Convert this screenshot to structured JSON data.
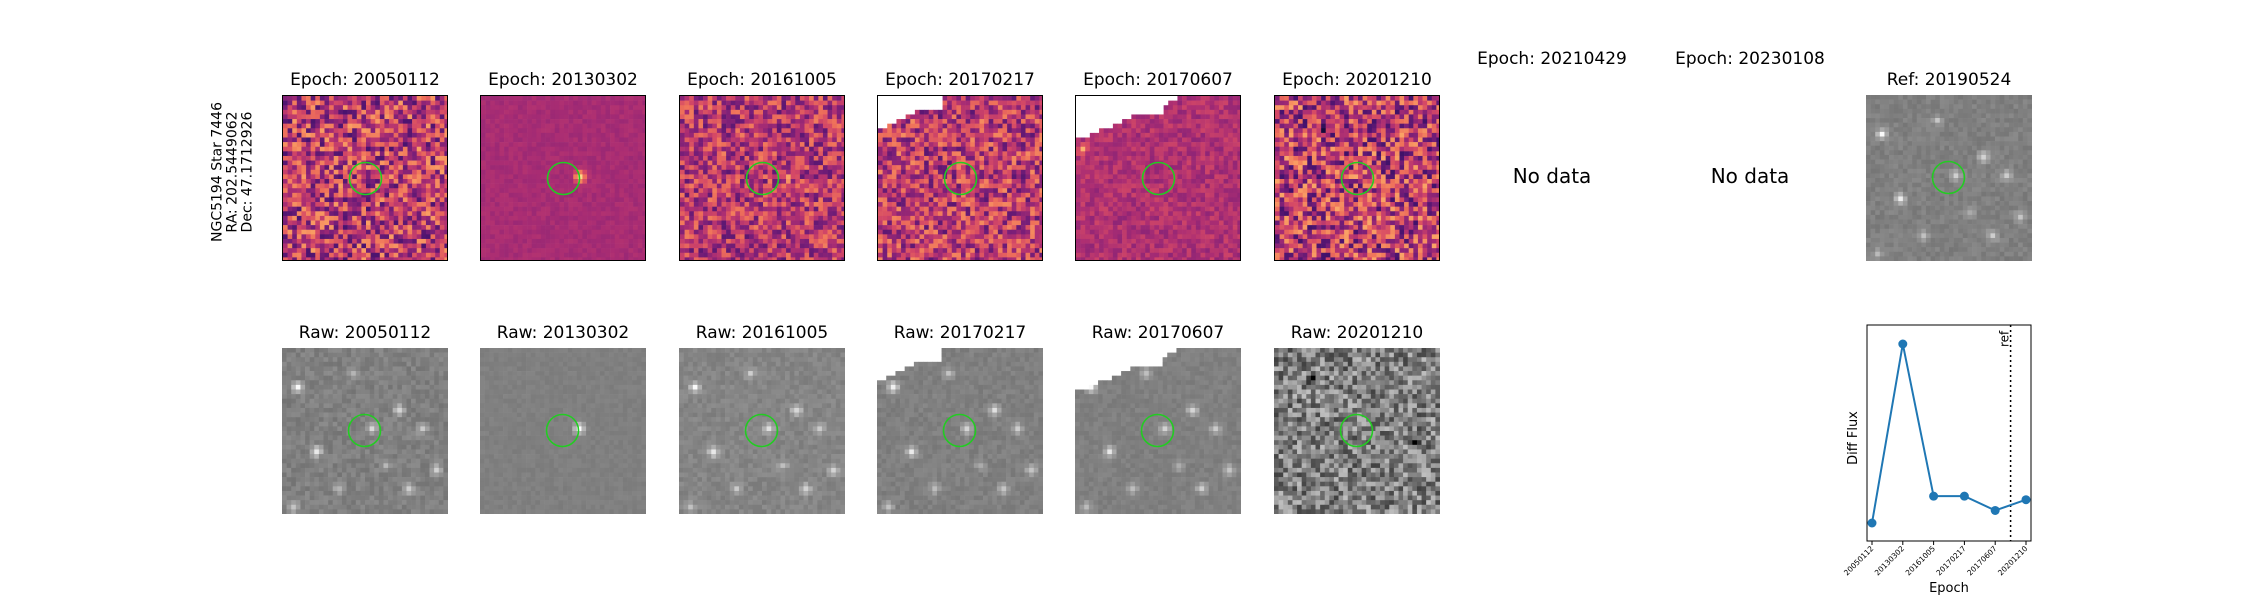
{
  "side_label": {
    "line1": "NGC5194 Star 7446",
    "line2": "RA: 202.5449062",
    "line3": "Dec: 47.1712926"
  },
  "epochs": [
    {
      "diff_title": "Epoch: 20050112",
      "raw_title": "Raw: 20050112"
    },
    {
      "diff_title": "Epoch: 20130302",
      "raw_title": "Raw: 20130302"
    },
    {
      "diff_title": "Epoch: 20161005",
      "raw_title": "Raw: 20161005"
    },
    {
      "diff_title": "Epoch: 20170217",
      "raw_title": "Raw: 20170217"
    },
    {
      "diff_title": "Epoch: 20170607",
      "raw_title": "Raw: 20170607"
    },
    {
      "diff_title": "Epoch: 20201210",
      "raw_title": "Raw: 20201210"
    },
    {
      "diff_title": "Epoch: 20210429",
      "no_data": "No data"
    },
    {
      "diff_title": "Epoch: 20230108",
      "no_data": "No data"
    }
  ],
  "ref": {
    "title": "Ref: 20190524"
  },
  "colors": {
    "marker_circle": "#22cc22",
    "series": "#1f77b4"
  },
  "chart_data": {
    "type": "line",
    "xlabel": "Epoch",
    "ylabel": "Diff Flux",
    "categories": [
      "20050112",
      "20130302",
      "20161005",
      "20170217",
      "20170607",
      "20201210"
    ],
    "values": [
      0.0,
      1.0,
      0.15,
      0.15,
      0.07,
      0.13
    ],
    "y_ticks_shown": false,
    "reference_line": {
      "label": "ref",
      "date": "20190524",
      "style": "dotted"
    }
  }
}
